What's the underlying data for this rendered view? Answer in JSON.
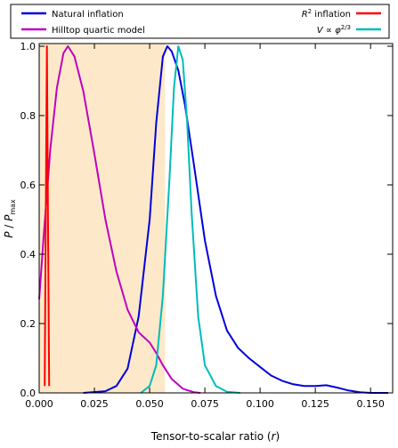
{
  "chart_data": {
    "type": "line",
    "xlabel": "Tensor-to-scalar ratio (r)",
    "ylabel": "P / P_max",
    "xlim": [
      0.0,
      0.16
    ],
    "ylim": [
      0.0,
      1.0
    ],
    "xticks": [
      "0.000",
      "0.025",
      "0.050",
      "0.075",
      "0.100",
      "0.125",
      "0.150"
    ],
    "xtick_values": [
      0.0,
      0.025,
      0.05,
      0.075,
      0.1,
      0.125,
      0.15
    ],
    "yticks": [
      "0.0",
      "0.2",
      "0.4",
      "0.6",
      "0.8",
      "1.0"
    ],
    "ytick_values": [
      0.0,
      0.2,
      0.4,
      0.6,
      0.8,
      1.0
    ],
    "grid": false,
    "legend_position": "top (outside plot, two columns)",
    "shaded_region": {
      "x_range": [
        0.0,
        0.057
      ],
      "color": "#fde9c9"
    },
    "series": [
      {
        "name": "Natural inflation",
        "color": "#0000dd",
        "points": [
          [
            0.02,
            0.0
          ],
          [
            0.03,
            0.005
          ],
          [
            0.035,
            0.02
          ],
          [
            0.04,
            0.07
          ],
          [
            0.045,
            0.22
          ],
          [
            0.05,
            0.5
          ],
          [
            0.053,
            0.78
          ],
          [
            0.056,
            0.97
          ],
          [
            0.058,
            1.0
          ],
          [
            0.06,
            0.985
          ],
          [
            0.063,
            0.93
          ],
          [
            0.066,
            0.83
          ],
          [
            0.07,
            0.66
          ],
          [
            0.075,
            0.44
          ],
          [
            0.08,
            0.28
          ],
          [
            0.085,
            0.18
          ],
          [
            0.09,
            0.13
          ],
          [
            0.095,
            0.1
          ],
          [
            0.1,
            0.075
          ],
          [
            0.105,
            0.05
          ],
          [
            0.11,
            0.035
          ],
          [
            0.115,
            0.025
          ],
          [
            0.12,
            0.02
          ],
          [
            0.125,
            0.02
          ],
          [
            0.13,
            0.022
          ],
          [
            0.135,
            0.015
          ],
          [
            0.14,
            0.007
          ],
          [
            0.145,
            0.002
          ],
          [
            0.15,
            0.0
          ],
          [
            0.158,
            0.0
          ]
        ]
      },
      {
        "name": "Hilltop quartic model",
        "color": "#c000c0",
        "points": [
          [
            0.0,
            0.27
          ],
          [
            0.002,
            0.45
          ],
          [
            0.005,
            0.7
          ],
          [
            0.008,
            0.88
          ],
          [
            0.011,
            0.98
          ],
          [
            0.013,
            1.0
          ],
          [
            0.016,
            0.97
          ],
          [
            0.02,
            0.87
          ],
          [
            0.025,
            0.69
          ],
          [
            0.03,
            0.5
          ],
          [
            0.035,
            0.35
          ],
          [
            0.04,
            0.24
          ],
          [
            0.045,
            0.175
          ],
          [
            0.05,
            0.145
          ],
          [
            0.053,
            0.115
          ],
          [
            0.056,
            0.08
          ],
          [
            0.06,
            0.04
          ],
          [
            0.065,
            0.012
          ],
          [
            0.07,
            0.002
          ],
          [
            0.073,
            0.0
          ]
        ]
      },
      {
        "name": "R^2 inflation",
        "color": "#ff0000",
        "points": [
          [
            0.0025,
            0.02
          ],
          [
            0.003,
            0.5
          ],
          [
            0.0035,
            1.0
          ],
          [
            0.004,
            0.5
          ],
          [
            0.0045,
            0.02
          ]
        ]
      },
      {
        "name": "V ∝ φ^{2/3}",
        "color": "#00bbbb",
        "points": [
          [
            0.046,
            0.0
          ],
          [
            0.05,
            0.02
          ],
          [
            0.053,
            0.08
          ],
          [
            0.056,
            0.28
          ],
          [
            0.059,
            0.62
          ],
          [
            0.061,
            0.88
          ],
          [
            0.063,
            1.0
          ],
          [
            0.065,
            0.96
          ],
          [
            0.067,
            0.78
          ],
          [
            0.069,
            0.52
          ],
          [
            0.072,
            0.22
          ],
          [
            0.075,
            0.08
          ],
          [
            0.08,
            0.02
          ],
          [
            0.085,
            0.003
          ],
          [
            0.091,
            0.0
          ]
        ]
      }
    ]
  },
  "legend": [
    {
      "label": "Natural inflation",
      "color": "#0000dd"
    },
    {
      "label": "Hilltop quartic model",
      "color": "#c000c0"
    },
    {
      "label": "R² inflation",
      "color": "#ff0000"
    },
    {
      "label": "V ∝ φ^2/3",
      "color": "#00bbbb"
    }
  ]
}
